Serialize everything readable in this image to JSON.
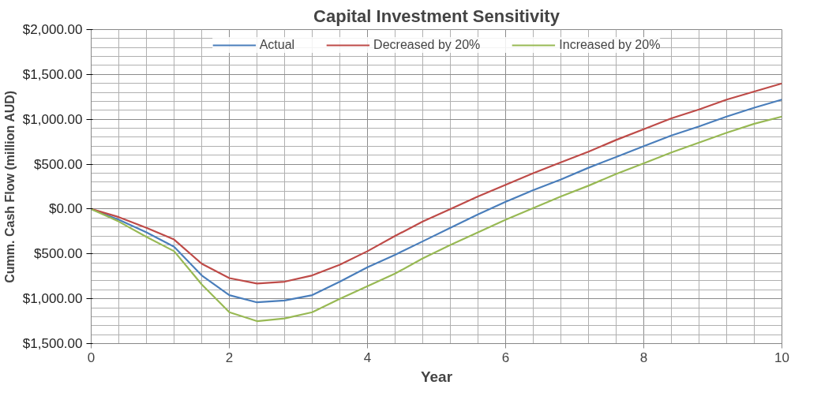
{
  "chart_data": {
    "type": "line",
    "title": "Capital Investment Sensitivity",
    "xlabel": "Year",
    "ylabel": "Cumm. Cash Flow (million AUD)",
    "x": [
      0,
      0.4,
      0.8,
      1.2,
      1.6,
      2.0,
      2.4,
      2.8,
      3.2,
      3.6,
      4.0,
      4.4,
      4.8,
      5.2,
      5.6,
      6.0,
      6.4,
      6.8,
      7.2,
      7.6,
      8.0,
      8.4,
      8.8,
      9.2,
      9.6,
      10
    ],
    "series": [
      {
        "name": "Actual",
        "color": "#4a7ebb",
        "values": [
          0,
          -120,
          -260,
          -420,
          -740,
          -960,
          -1040,
          -1020,
          -960,
          -810,
          -650,
          -510,
          -360,
          -210,
          -60,
          80,
          210,
          330,
          460,
          580,
          700,
          820,
          920,
          1030,
          1130,
          1220
        ]
      },
      {
        "name": "Decreased by 20%",
        "color": "#be4b48",
        "values": [
          0,
          -90,
          -210,
          -340,
          -610,
          -770,
          -830,
          -810,
          -740,
          -620,
          -470,
          -300,
          -140,
          0,
          140,
          270,
          400,
          520,
          640,
          770,
          890,
          1010,
          1110,
          1220,
          1310,
          1400
        ]
      },
      {
        "name": "Increased by 20%",
        "color": "#98b954",
        "values": [
          0,
          -140,
          -310,
          -470,
          -840,
          -1150,
          -1250,
          -1220,
          -1150,
          -1000,
          -860,
          -720,
          -550,
          -400,
          -260,
          -120,
          10,
          140,
          260,
          390,
          510,
          630,
          740,
          850,
          950,
          1030
        ]
      }
    ],
    "xlim": [
      0,
      10
    ],
    "xticks": [
      0,
      2,
      4,
      6,
      8,
      10
    ],
    "ylim": [
      -1500,
      2000
    ],
    "yticks": [
      {
        "value": 2000,
        "label": "$2,000.00"
      },
      {
        "value": 1500,
        "label": "$1,500.00"
      },
      {
        "value": 1000,
        "label": "$1,000.00"
      },
      {
        "value": 500,
        "label": "$500.00"
      },
      {
        "value": 0,
        "label": "$0.00"
      },
      {
        "value": -500,
        "label": "$500.00"
      },
      {
        "value": -1000,
        "label": "$1,000.00"
      },
      {
        "value": -1500,
        "label": "$1,500.00"
      }
    ],
    "grid": true,
    "legend": "top",
    "marker": "none",
    "line_style": "solid"
  }
}
